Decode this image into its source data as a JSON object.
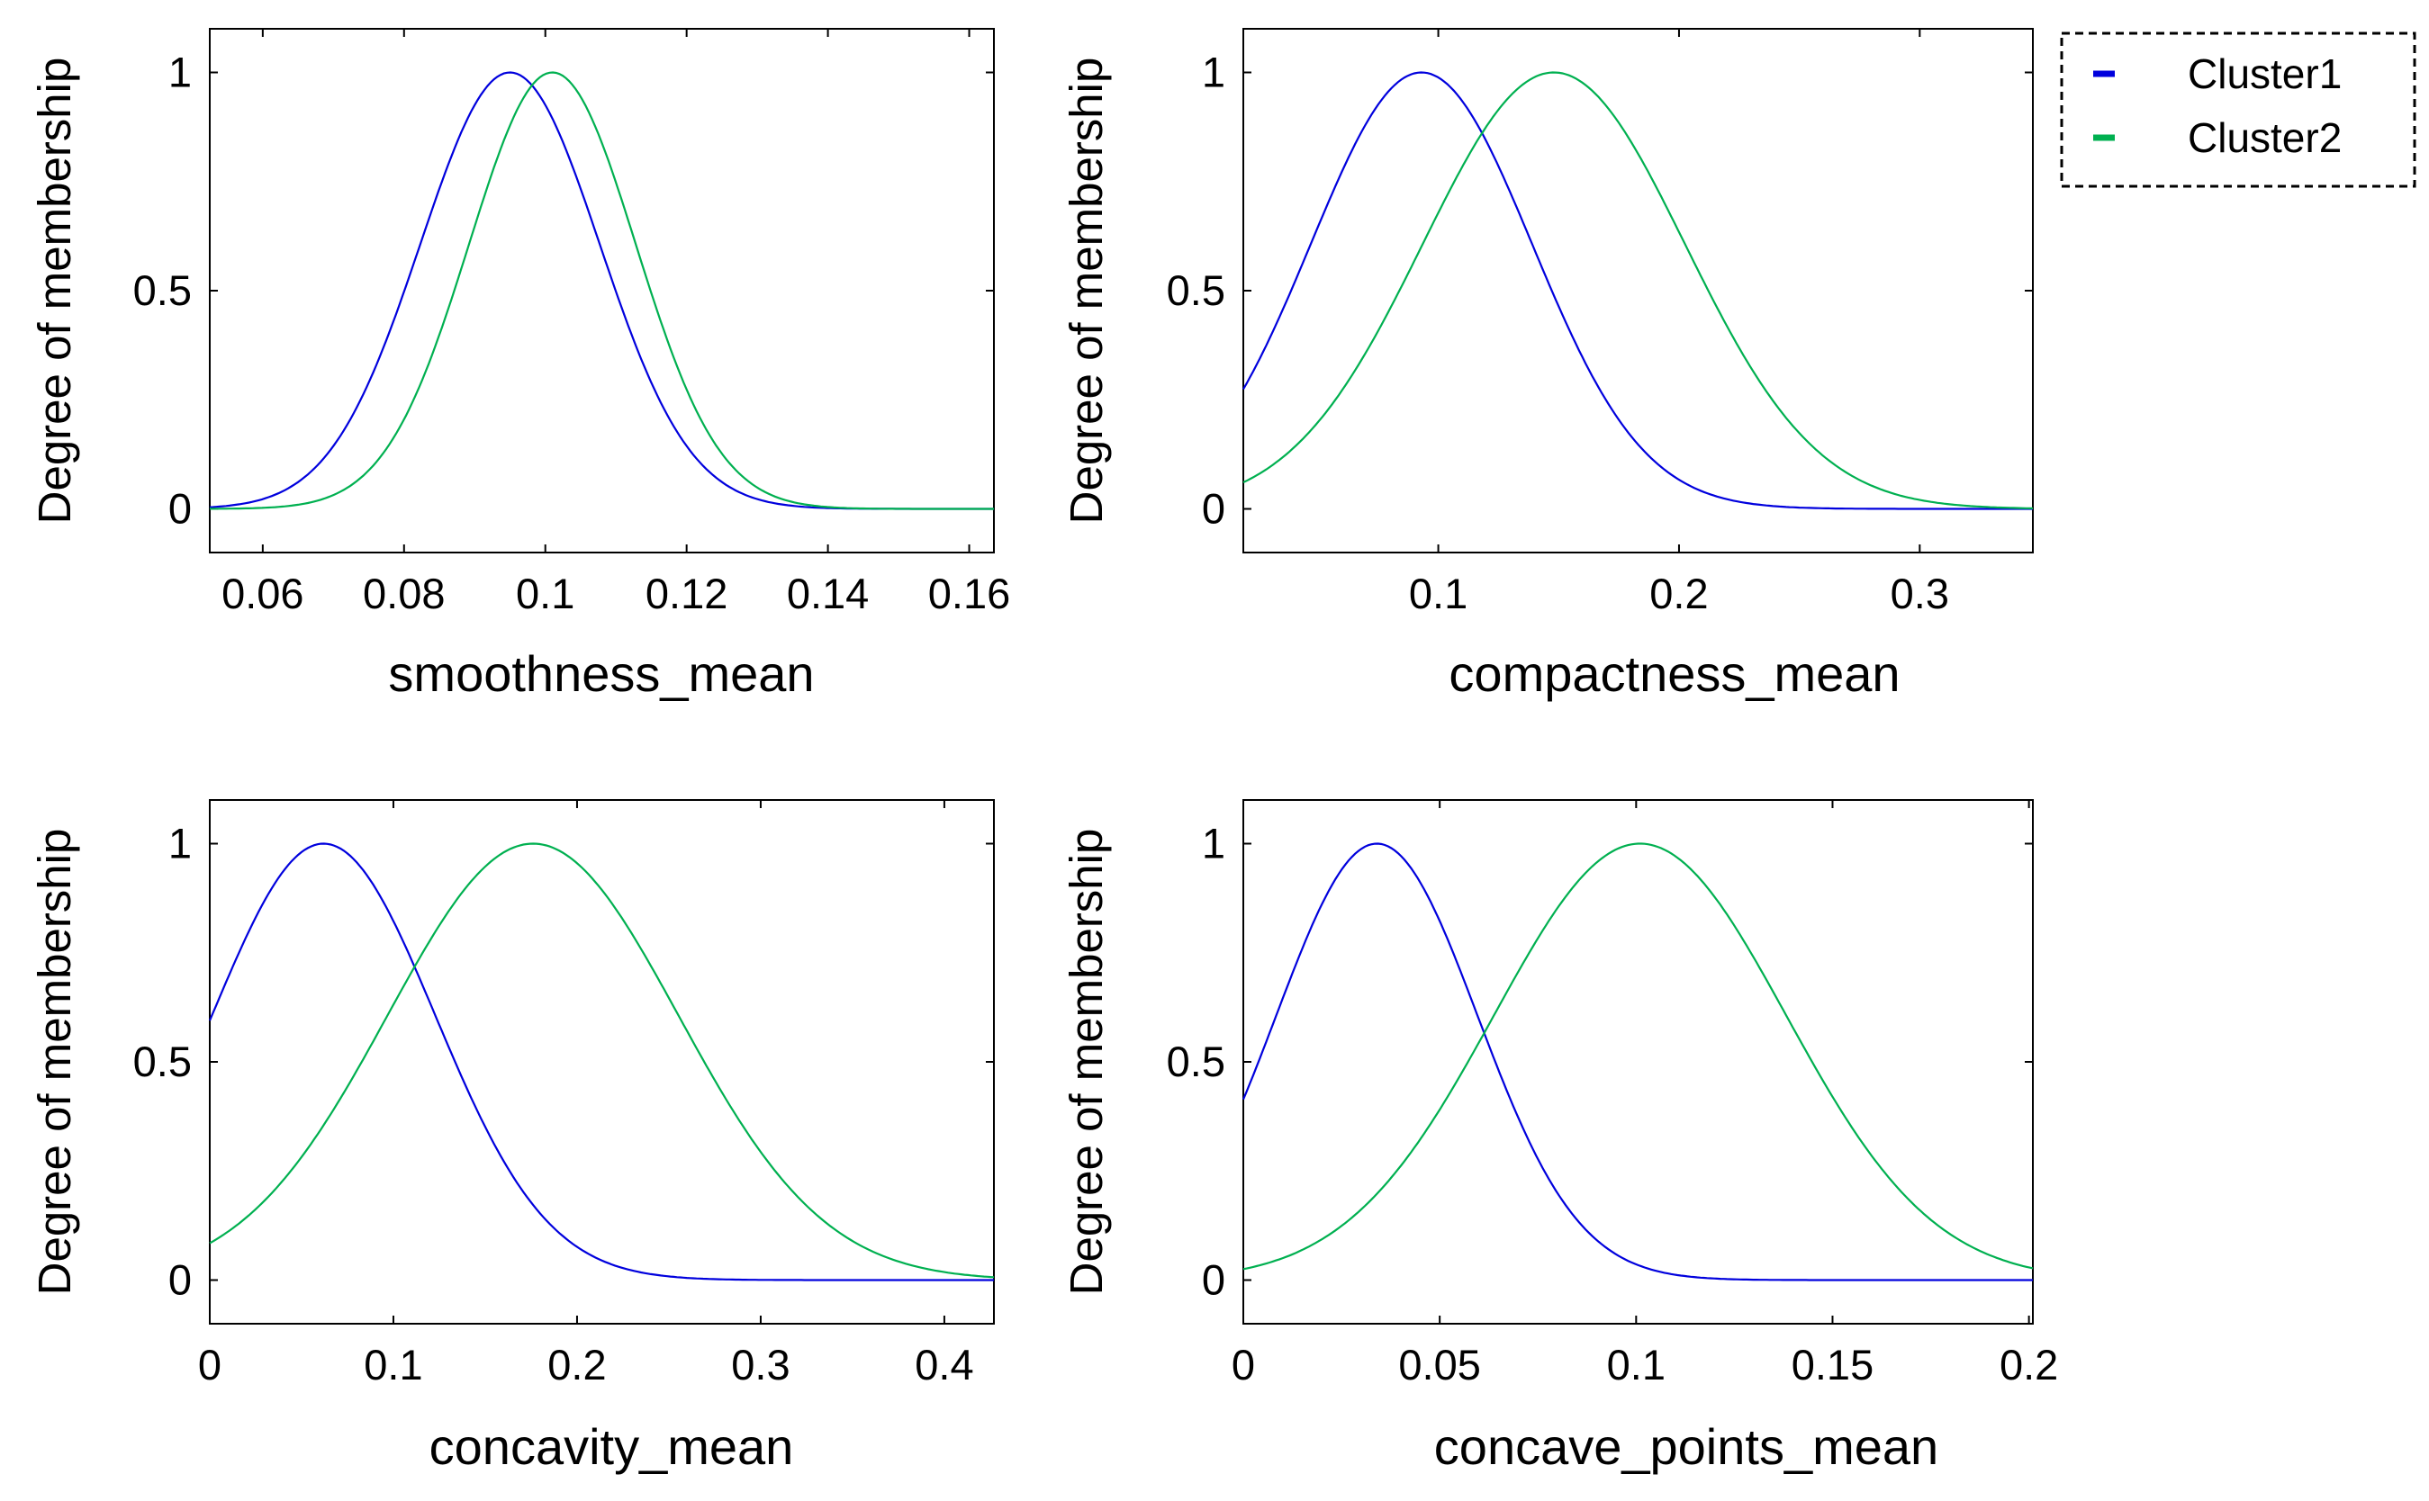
{
  "figure": {
    "legend": {
      "placement": "top-right",
      "entries": [
        {
          "label": "Cluster1",
          "color": "#0000dd"
        },
        {
          "label": "Cluster2",
          "color": "#00b050"
        }
      ]
    }
  },
  "chart_data": [
    {
      "type": "line",
      "xlabel": "smoothness_mean",
      "ylabel": "Degree of membership",
      "xlim": [
        0.0525,
        0.1635
      ],
      "ylim": [
        -0.1,
        1.1
      ],
      "xticks": [
        {
          "value": 0.06,
          "label": "0.06"
        },
        {
          "value": 0.08,
          "label": "0.08"
        },
        {
          "value": 0.1,
          "label": "0.1"
        },
        {
          "value": 0.12,
          "label": "0.12"
        },
        {
          "value": 0.14,
          "label": "0.14"
        },
        {
          "value": 0.16,
          "label": "0.16"
        }
      ],
      "yticks": [
        {
          "value": 0,
          "label": "0"
        },
        {
          "value": 0.5,
          "label": "0.5"
        },
        {
          "value": 1,
          "label": "1"
        }
      ],
      "series": [
        {
          "name": "Cluster1",
          "color": "#0000dd",
          "mean": 0.095,
          "sigma": 0.0127
        },
        {
          "name": "Cluster2",
          "color": "#00b050",
          "mean": 0.101,
          "sigma": 0.0118
        }
      ]
    },
    {
      "type": "line",
      "xlabel": "compactness_mean",
      "ylabel": "Degree of membership",
      "xlim": [
        0.019,
        0.347
      ],
      "ylim": [
        -0.1,
        1.1
      ],
      "xticks": [
        {
          "value": 0.1,
          "label": "0.1"
        },
        {
          "value": 0.2,
          "label": "0.2"
        },
        {
          "value": 0.3,
          "label": "0.3"
        }
      ],
      "yticks": [
        {
          "value": 0,
          "label": "0"
        },
        {
          "value": 0.5,
          "label": "0.5"
        },
        {
          "value": 1,
          "label": "1"
        }
      ],
      "series": [
        {
          "name": "Cluster1",
          "color": "#0000dd",
          "mean": 0.093,
          "sigma": 0.046
        },
        {
          "name": "Cluster2",
          "color": "#00b050",
          "mean": 0.148,
          "sigma": 0.0545
        }
      ]
    },
    {
      "type": "line",
      "xlabel": "concavity_mean",
      "ylabel": "Degree of membership",
      "xlim": [
        0,
        0.427
      ],
      "ylim": [
        -0.1,
        1.1
      ],
      "xticks": [
        {
          "value": 0,
          "label": "0"
        },
        {
          "value": 0.1,
          "label": "0.1"
        },
        {
          "value": 0.2,
          "label": "0.2"
        },
        {
          "value": 0.3,
          "label": "0.3"
        },
        {
          "value": 0.4,
          "label": "0.4"
        }
      ],
      "yticks": [
        {
          "value": 0,
          "label": "0"
        },
        {
          "value": 0.5,
          "label": "0.5"
        },
        {
          "value": 1,
          "label": "1"
        }
      ],
      "series": [
        {
          "name": "Cluster1",
          "color": "#0000dd",
          "mean": 0.062,
          "sigma": 0.0608
        },
        {
          "name": "Cluster2",
          "color": "#00b050",
          "mean": 0.176,
          "sigma": 0.0792
        }
      ]
    },
    {
      "type": "line",
      "xlabel": "concave_points_mean",
      "ylabel": "Degree of membership",
      "xlim": [
        0,
        0.201
      ],
      "ylim": [
        -0.1,
        1.1
      ],
      "xticks": [
        {
          "value": 0,
          "label": "0"
        },
        {
          "value": 0.05,
          "label": "0.05"
        },
        {
          "value": 0.1,
          "label": "0.1"
        },
        {
          "value": 0.15,
          "label": "0.15"
        },
        {
          "value": 0.2,
          "label": "0.2"
        }
      ],
      "yticks": [
        {
          "value": 0,
          "label": "0"
        },
        {
          "value": 0.5,
          "label": "0.5"
        },
        {
          "value": 1,
          "label": "1"
        }
      ],
      "series": [
        {
          "name": "Cluster1",
          "color": "#0000dd",
          "mean": 0.034,
          "sigma": 0.0256
        },
        {
          "name": "Cluster2",
          "color": "#00b050",
          "mean": 0.101,
          "sigma": 0.0372
        }
      ]
    }
  ]
}
